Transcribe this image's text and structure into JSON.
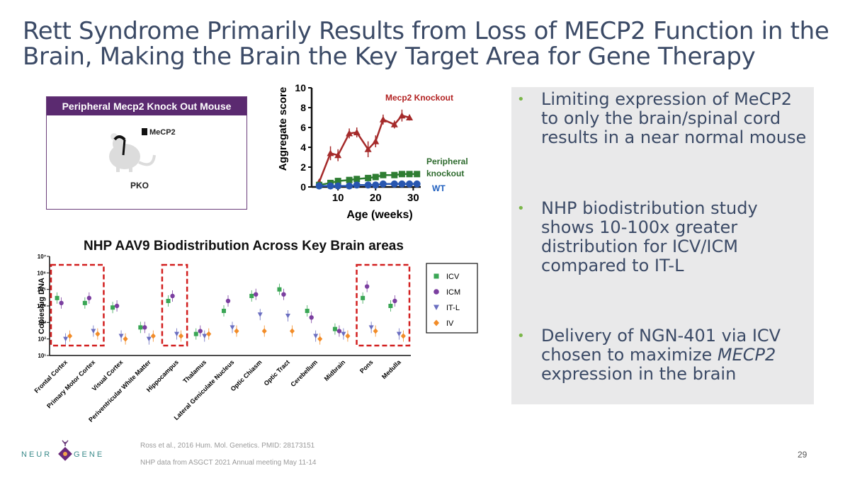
{
  "title": {
    "line1": "Rett Syndrome Primarily Results from Loss of MECP2 Function in the",
    "line2": "Brain, Making the Brain the Key Target Area for Gene Therapy"
  },
  "pko_panel": {
    "header": "Peripheral Mecp2 Knock Out Mouse",
    "legend": "MeCP2",
    "label": "PKO"
  },
  "aggregate_chart": {
    "type": "line",
    "ylabel": "Aggregate score",
    "xlabel": "Age (weeks)",
    "y_ticks": [
      "0",
      "2",
      "4",
      "6",
      "8",
      "10"
    ],
    "x_ticks": [
      "10",
      "20",
      "30"
    ],
    "ylim": [
      0,
      10
    ],
    "xlim": [
      3,
      32
    ],
    "colors": {
      "knockout": "#a52a2a",
      "peripheral": "#2e7d32",
      "wt": "#2756b0"
    },
    "series": [
      {
        "name": "Mecp2 Knockout",
        "x": [
          5,
          8,
          10,
          13,
          15,
          18,
          20,
          22,
          25,
          27,
          29
        ],
        "y": [
          0.5,
          3.4,
          3.2,
          5.4,
          5.5,
          3.8,
          4.6,
          6.8,
          6.3,
          7.2,
          7.0
        ],
        "err": [
          0.3,
          0.7,
          0.6,
          0.5,
          0.5,
          0.8,
          0.6,
          0.5,
          0.4,
          0.6,
          0.3
        ]
      },
      {
        "name": "Peripheral knockout",
        "x": [
          5,
          8,
          10,
          13,
          15,
          18,
          20,
          22,
          25,
          27,
          29,
          31
        ],
        "y": [
          0.2,
          0.4,
          0.6,
          0.7,
          0.8,
          0.9,
          1.0,
          1.2,
          1.2,
          1.3,
          1.3,
          1.3
        ],
        "err": [
          0.1,
          0.2,
          0.2,
          0.2,
          0.2,
          0.2,
          0.2,
          0.2,
          0.2,
          0.2,
          0.2,
          0.2
        ]
      },
      {
        "name": "WT",
        "x": [
          5,
          8,
          10,
          13,
          15,
          18,
          20,
          22,
          25,
          27,
          29,
          31
        ],
        "y": [
          0.1,
          0.1,
          0.1,
          0.1,
          0.2,
          0.2,
          0.2,
          0.3,
          0.3,
          0.3,
          0.3,
          0.3
        ],
        "err": [
          0.1,
          0.1,
          0.1,
          0.1,
          0.1,
          0.1,
          0.1,
          0.1,
          0.1,
          0.1,
          0.1,
          0.1
        ]
      }
    ]
  },
  "chart_data": {
    "type": "scatter",
    "title": "NHP AAV9 Biodistribution Across Key Brain areas",
    "ylabel": "Copies/µg DNA",
    "y_scale": "log",
    "ylim": [
      10,
      10000000
    ],
    "y_ticks": [
      "10¹",
      "10²",
      "10³",
      "10⁴",
      "10⁵",
      "10⁶",
      "10⁷"
    ],
    "categories": [
      "Frontal Cortex",
      "Primary Motor Cortex",
      "Visual Cortex",
      "Periventricular White Matter",
      "Hippocampus",
      "Thalamus",
      "Lateral Geniculate Nucleus",
      "Optic Chiasm",
      "Optic Tract",
      "Cerebellum",
      "Midbrain",
      "Pons",
      "Medulla"
    ],
    "highlighted": [
      "Frontal Cortex",
      "Primary Motor Cortex",
      "Hippocampus",
      "Pons",
      "Medulla"
    ],
    "legend_position": "right",
    "series": [
      {
        "name": "ICV",
        "color": "#3aa655",
        "marker": "square",
        "values": [
          30000,
          15000,
          8000,
          500,
          20000,
          200,
          5000,
          40000,
          100000,
          5000,
          400,
          30000,
          10000
        ]
      },
      {
        "name": "ICM",
        "color": "#7b3fa0",
        "marker": "circle",
        "values": [
          15000,
          30000,
          10000,
          500,
          40000,
          300,
          20000,
          50000,
          50000,
          2000,
          300,
          150000,
          20000
        ]
      },
      {
        "name": "IT-L",
        "color": "#6a6ec0",
        "marker": "triangle",
        "values": [
          100,
          300,
          150,
          100,
          200,
          150,
          500,
          3000,
          2500,
          150,
          200,
          500,
          200
        ]
      },
      {
        "name": "IV",
        "color": "#f28c28",
        "marker": "diamond",
        "values": [
          150,
          200,
          100,
          150,
          150,
          200,
          300,
          300,
          300,
          100,
          150,
          300,
          150
        ]
      }
    ]
  },
  "bullets": [
    {
      "text": "Limiting expression of MeCP2 to only the brain/spinal cord results in a near normal mouse"
    },
    {
      "text": "NHP biodistribution study shows 10-100x greater distribution for ICV/ICM compared to IT-L"
    },
    {
      "text_pre": "Delivery of NGN-401 via ICV chosen to maximize ",
      "text_em": "MECP2",
      "text_post": " expression in the brain"
    }
  ],
  "footer": {
    "logo_left": "NEUR",
    "logo_right": "GENE",
    "ref1": "Ross et al., 2016 Hum. Mol. Genetics. PMID: 28173151",
    "ref2": "NHP data from ASGCT 2021 Annual meeting May 11-14",
    "page_number": "29"
  }
}
